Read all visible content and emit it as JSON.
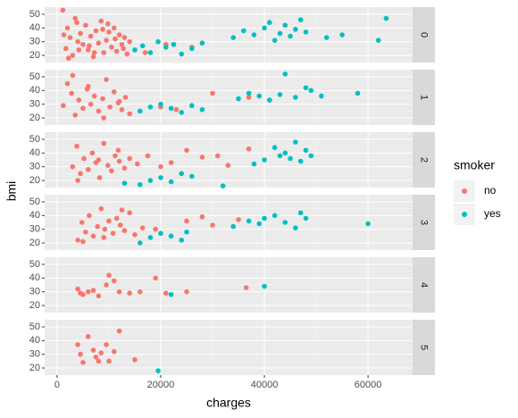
{
  "chart_data": {
    "type": "scatter",
    "x_label": "charges",
    "y_label": "bmi",
    "legend_title": "smoker",
    "legend_position": "right",
    "grid": true,
    "xlim": [
      -2400,
      68600
    ],
    "xticks": [
      0,
      20000,
      40000,
      60000
    ],
    "ylim": [
      14.8,
      55.2
    ],
    "yticks": [
      20,
      30,
      40,
      50
    ],
    "series": [
      {
        "name": "no",
        "color": "#F8766D"
      },
      {
        "name": "yes",
        "color": "#00BFC4"
      }
    ],
    "facets": [
      {
        "label": "0",
        "series": [
          {
            "x": [
              1100,
              1700,
              2000,
              2500,
              3000,
              3500,
              4000,
              4500,
              5000,
              5500,
              6000,
              6500,
              7000,
              7500,
              8000,
              8500,
              9000,
              9500,
              10000,
              10500,
              11000,
              11500,
              12000,
              12500,
              13000,
              13500,
              14000,
              2200,
              3800,
              6200,
              8800,
              11200,
              4200,
              9800,
              12800,
              17000,
              21000,
              26000,
              1300,
              7200
            ],
            "values": [
              53,
              25,
              40,
              33,
              20,
              47,
              30,
              36,
              28,
              42,
              24,
              34,
              19,
              38,
              29,
              45,
              22,
              31,
              37,
              26,
              40,
              23,
              35,
              28,
              33,
              21,
              30,
              18,
              44,
              27,
              39,
              32,
              24,
              43,
              25,
              22,
              28,
              26,
              35,
              22
            ]
          },
          {
            "x": [
              15000,
              16500,
              18000,
              19500,
              21000,
              22500,
              24000,
              26000,
              28000,
              34000,
              36000,
              38000,
              40000,
              41000,
              42000,
              43000,
              44000,
              45000,
              46000,
              47000,
              48000,
              52000,
              55000,
              62000,
              63500
            ],
            "values": [
              24,
              27,
              22,
              30,
              26,
              28,
              21,
              25,
              29,
              33,
              38,
              35,
              40,
              44,
              31,
              36,
              42,
              34,
              39,
              46,
              37,
              33,
              35,
              31,
              47
            ]
          }
        ]
      },
      {
        "label": "1",
        "series": [
          {
            "x": [
              1200,
              2000,
              2800,
              3500,
              4200,
              5000,
              5800,
              6500,
              7200,
              8000,
              8800,
              9500,
              10200,
              11000,
              11800,
              12500,
              13200,
              14000,
              3000,
              6000,
              9000,
              12000,
              20000,
              23000,
              30000,
              37000
            ],
            "values": [
              29,
              45,
              38,
              22,
              33,
              27,
              41,
              30,
              36,
              25,
              34,
              48,
              28,
              39,
              31,
              26,
              35,
              23,
              51,
              43,
              20,
              32,
              28,
              26,
              38,
              35
            ]
          },
          {
            "x": [
              16000,
              18000,
              20000,
              22000,
              24000,
              26000,
              28000,
              35000,
              37000,
              39000,
              41000,
              43000,
              44000,
              46000,
              48000,
              49000,
              51000,
              58000
            ],
            "values": [
              25,
              28,
              30,
              27,
              24,
              29,
              26,
              34,
              38,
              36,
              33,
              37,
              52,
              35,
              42,
              40,
              36,
              38
            ]
          }
        ]
      },
      {
        "label": "2",
        "series": [
          {
            "x": [
              3000,
              3800,
              4500,
              5200,
              6000,
              6800,
              7500,
              8200,
              9000,
              9800,
              10500,
              11200,
              12000,
              13000,
              14000,
              15500,
              17500,
              20000,
              22000,
              25000,
              28000,
              31000,
              33000,
              37000,
              4000,
              8000,
              11800
            ],
            "values": [
              30,
              45,
              25,
              36,
              28,
              40,
              33,
              22,
              47,
              31,
              27,
              38,
              34,
              29,
              36,
              32,
              38,
              30,
              33,
              42,
              37,
              38,
              31,
              43,
              20,
              35,
              42
            ]
          },
          {
            "x": [
              13000,
              16000,
              18000,
              20000,
              22000,
              24000,
              26000,
              32000,
              38000,
              40000,
              42000,
              43000,
              44000,
              45000,
              46000,
              47000,
              48000,
              49000
            ],
            "values": [
              18,
              17,
              20,
              22,
              19,
              25,
              23,
              16,
              32,
              35,
              44,
              38,
              40,
              36,
              48,
              34,
              42,
              38
            ]
          }
        ]
      },
      {
        "label": "3",
        "series": [
          {
            "x": [
              4000,
              4800,
              5500,
              6200,
              7000,
              7800,
              8500,
              9200,
              10000,
              10800,
              11500,
              12200,
              13000,
              14000,
              15000,
              16500,
              19000,
              25000,
              28000,
              30000,
              35000,
              5000,
              9000,
              12500
            ],
            "values": [
              22,
              35,
              28,
              40,
              25,
              32,
              45,
              30,
              36,
              27,
              38,
              33,
              29,
              42,
              26,
              31,
              30,
              36,
              39,
              33,
              37,
              21,
              24,
              44
            ]
          },
          {
            "x": [
              16000,
              18000,
              20000,
              22000,
              24000,
              25000,
              34000,
              37000,
              39000,
              40000,
              42000,
              44000,
              46000,
              47000,
              48000,
              60000
            ],
            "values": [
              20,
              24,
              27,
              25,
              22,
              28,
              32,
              36,
              34,
              38,
              40,
              35,
              31,
              42,
              38,
              34
            ]
          }
        ]
      },
      {
        "label": "4",
        "series": [
          {
            "x": [
              4000,
              4500,
              5000,
              6000,
              7000,
              8000,
              9500,
              10000,
              11000,
              12000,
              14000,
              16000,
              19000,
              21000,
              25000,
              36500
            ],
            "values": [
              32,
              29,
              28,
              30,
              31,
              27,
              35,
              42,
              38,
              30,
              29,
              30,
              40,
              29,
              30,
              33
            ]
          },
          {
            "x": [
              22000,
              40000
            ],
            "values": [
              28,
              34
            ]
          }
        ]
      },
      {
        "label": "5",
        "series": [
          {
            "x": [
              4000,
              4500,
              5000,
              6000,
              7000,
              7500,
              8000,
              8500,
              9500,
              10000,
              11000,
              12000,
              15000
            ],
            "values": [
              37,
              30,
              24,
              43,
              33,
              28,
              25,
              31,
              37,
              25,
              32,
              47,
              26
            ]
          },
          {
            "x": [
              19500
            ],
            "values": [
              18
            ]
          }
        ]
      }
    ]
  }
}
